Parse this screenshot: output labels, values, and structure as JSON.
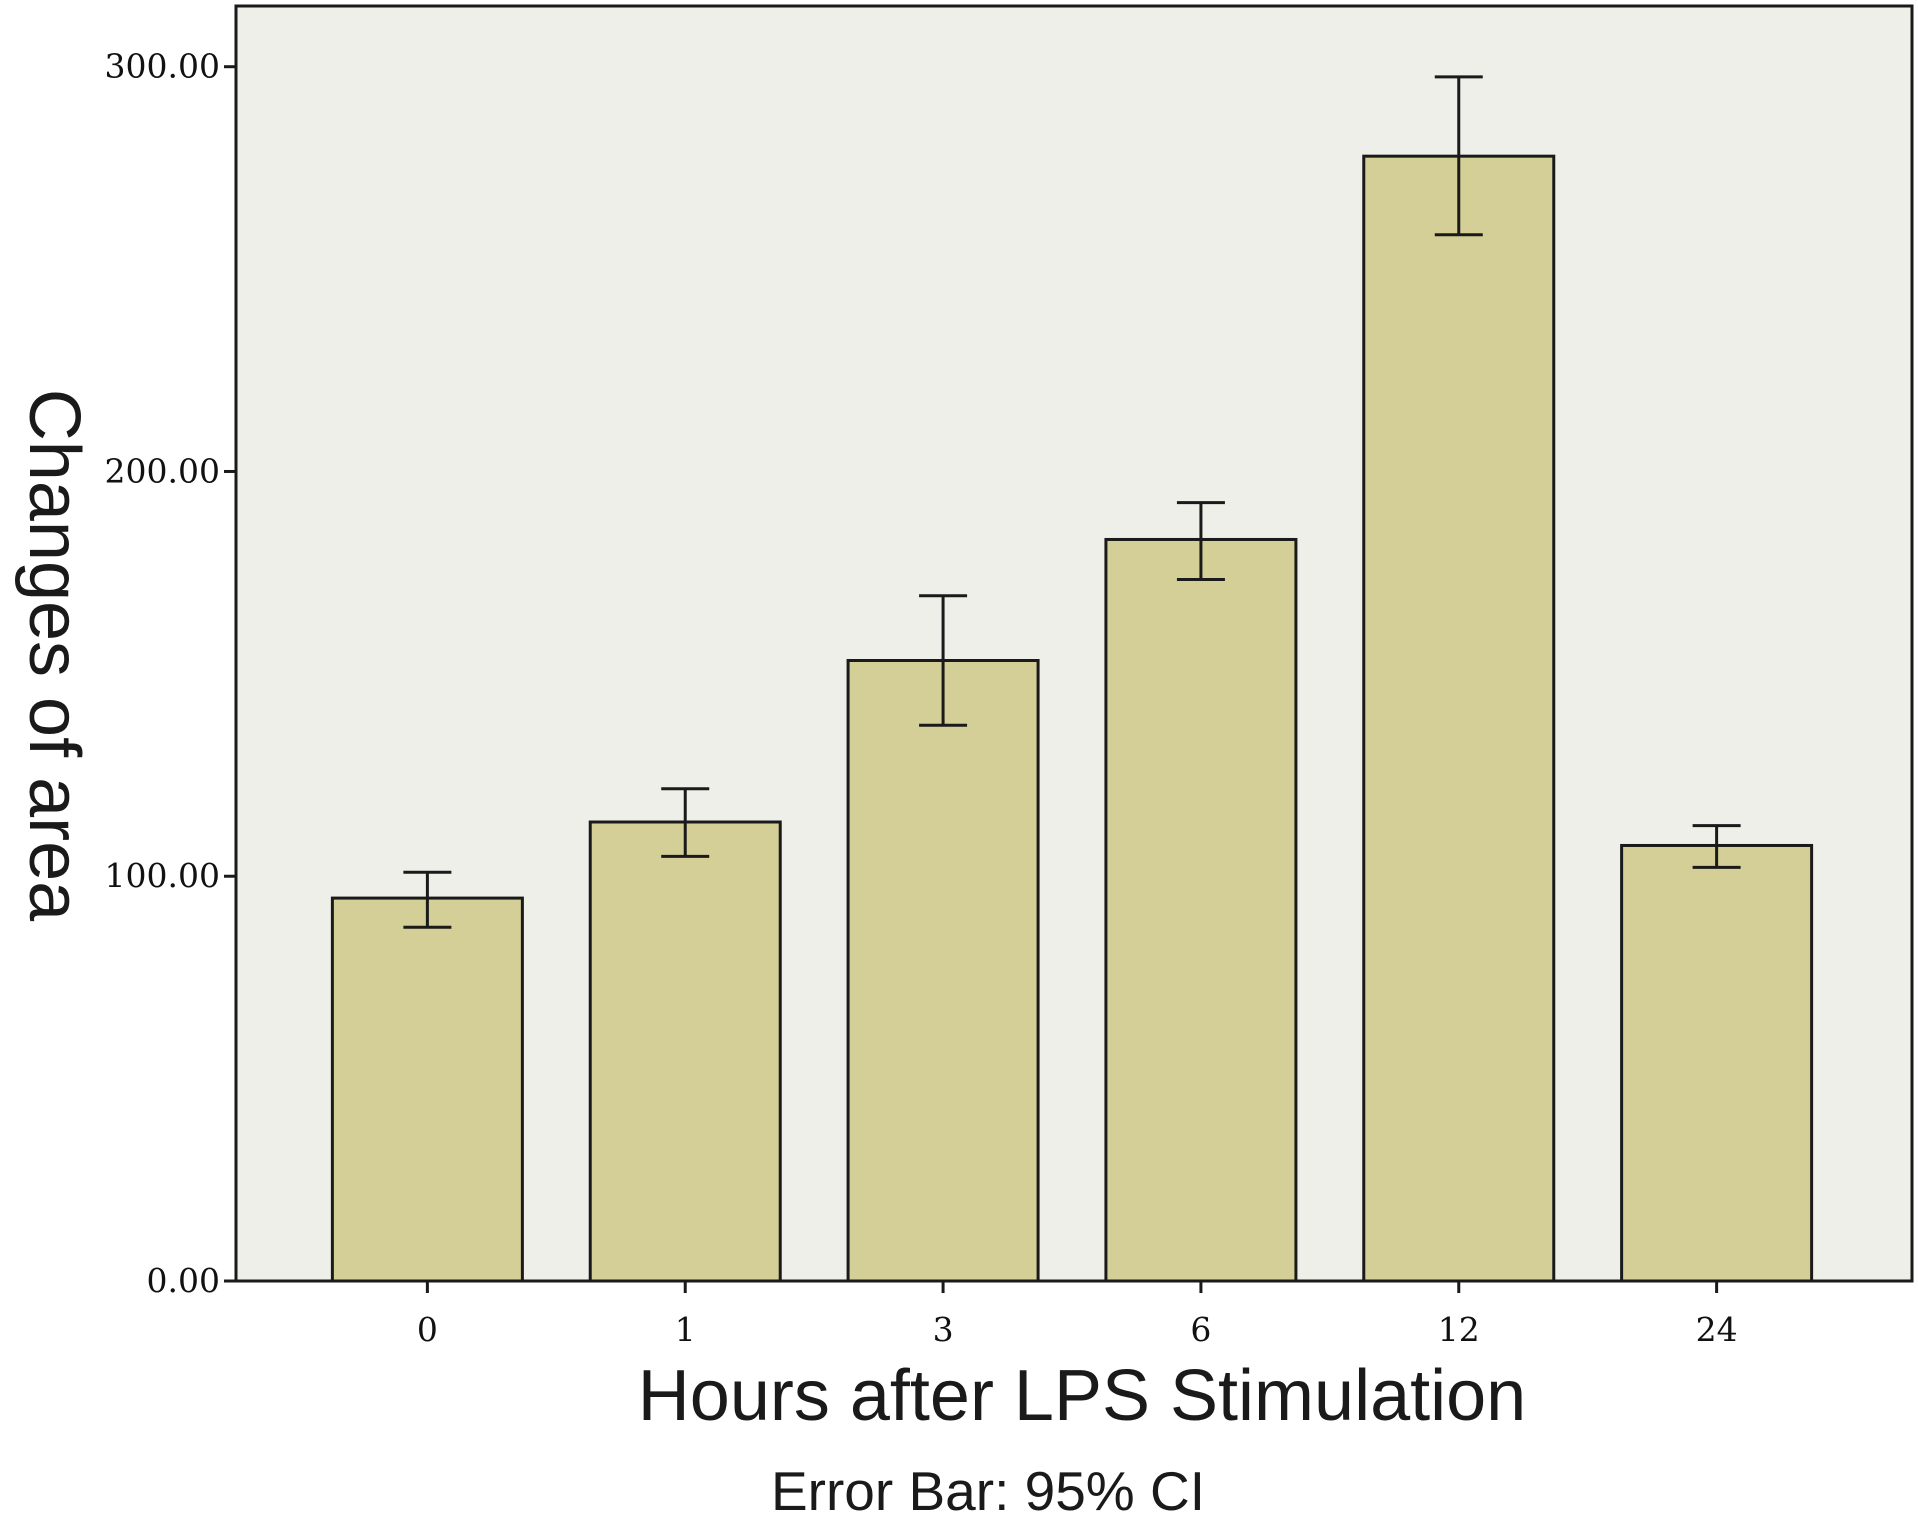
{
  "chart_data": {
    "type": "bar",
    "title": "",
    "xlabel": "Hours after LPS Stimulation",
    "ylabel": "Changes of area",
    "footnote": "Error Bar: 95% CI",
    "categories": [
      "0",
      "1",
      "3",
      "6",
      "12",
      "24"
    ],
    "values": [
      94.6,
      113.4,
      153.3,
      183.2,
      277.9,
      107.6
    ],
    "ci_low": [
      87.4,
      104.9,
      137.3,
      173.3,
      258.5,
      102.2
    ],
    "ci_high": [
      101.0,
      121.6,
      169.3,
      192.3,
      297.5,
      112.5
    ],
    "yticks": [
      "0.00",
      "100.00",
      "200.00",
      "300.00"
    ],
    "ytick_values": [
      0,
      100,
      200,
      300
    ],
    "ylim": [
      0,
      315
    ],
    "grid": false,
    "colors": {
      "bar": "#d4cf97",
      "background": "#efefea",
      "stroke": "#1a1a1a"
    }
  }
}
